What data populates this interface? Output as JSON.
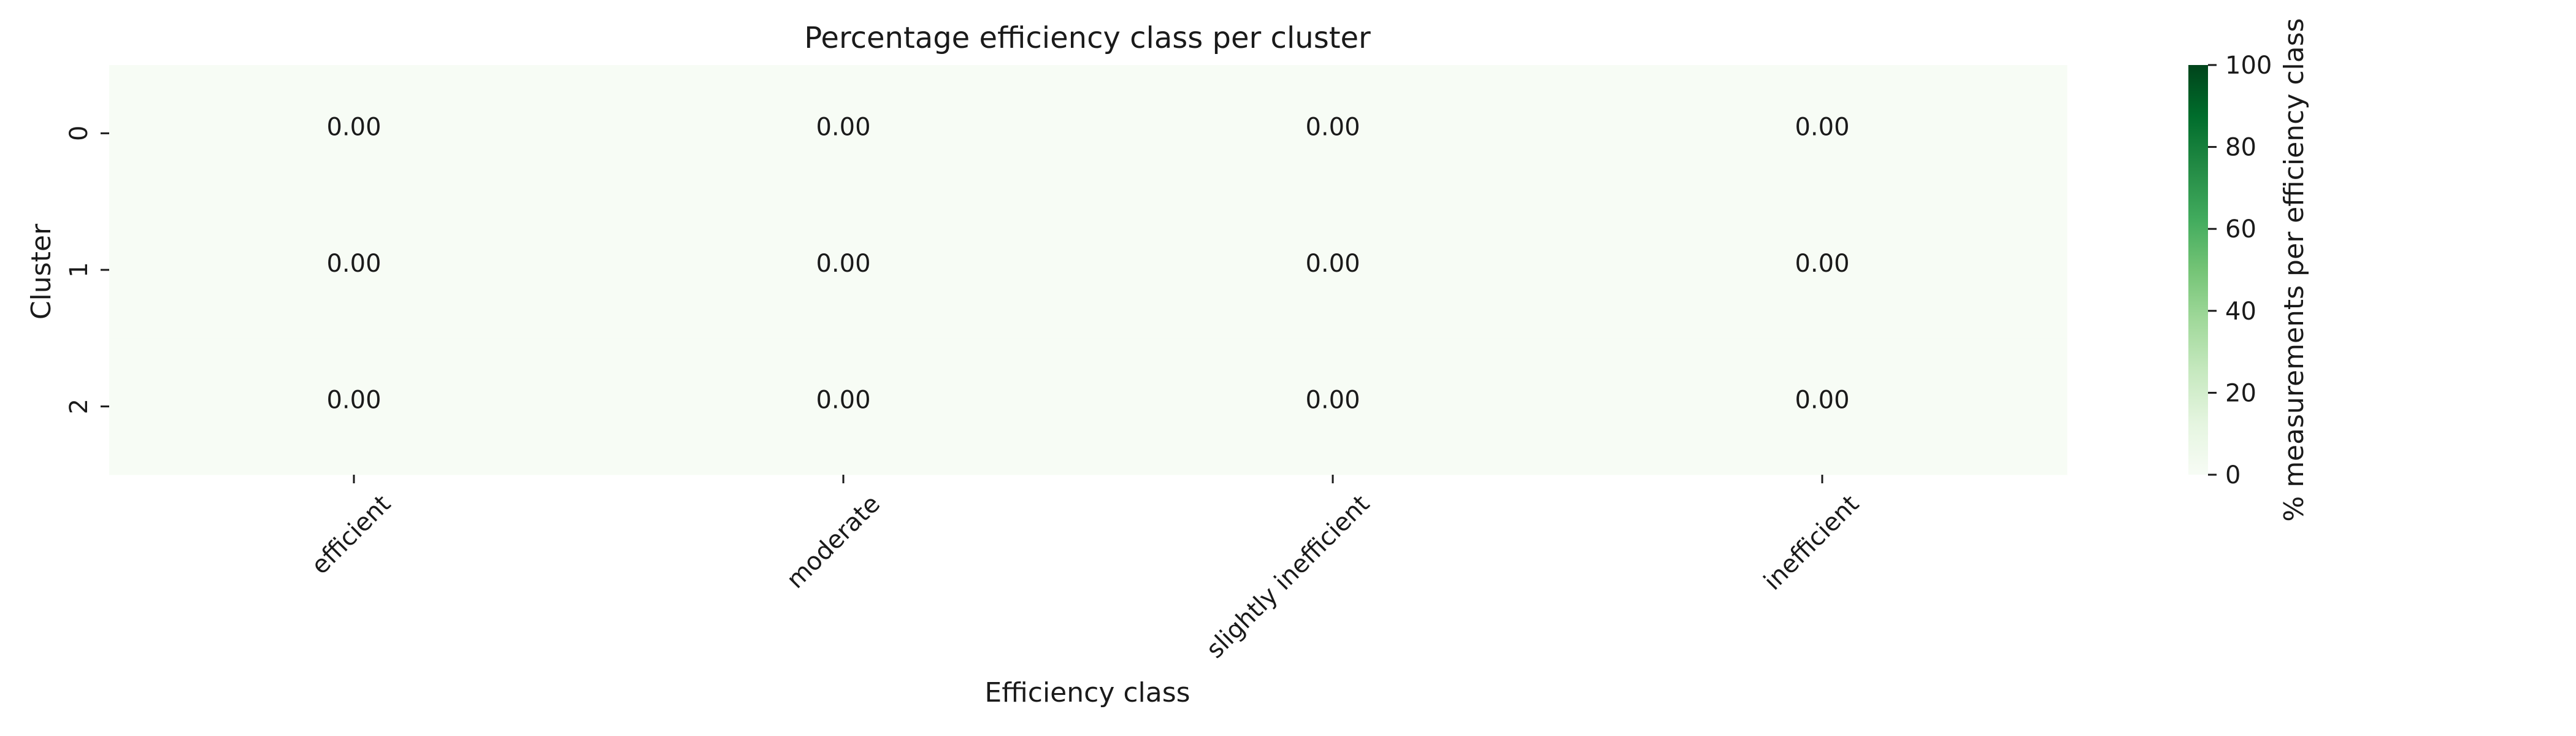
{
  "chart_data": {
    "type": "heatmap",
    "title": "Percentage efficiency class per cluster",
    "xlabel": "Efficiency class",
    "ylabel": "Cluster",
    "x_categories": [
      "efficient",
      "moderate",
      "slightly inefficient",
      "inefficient"
    ],
    "y_categories": [
      "0",
      "1",
      "2"
    ],
    "values": [
      [
        0.0,
        0.0,
        0.0,
        0.0
      ],
      [
        0.0,
        0.0,
        0.0,
        0.0
      ],
      [
        0.0,
        0.0,
        0.0,
        0.0
      ]
    ],
    "value_format": "0.00",
    "colorbar": {
      "label": "% measurements per efficiency class",
      "range": [
        0,
        100
      ],
      "ticks": [
        0,
        20,
        40,
        60,
        80,
        100
      ],
      "colormap": "Greens",
      "color_min": "#f7fcf5",
      "color_max": "#00441b"
    },
    "grid": false
  }
}
